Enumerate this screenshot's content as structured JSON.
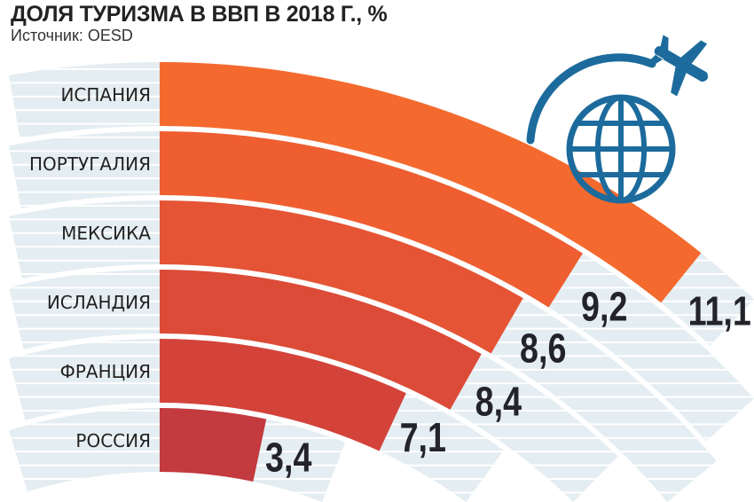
{
  "chart_data": {
    "type": "radial-bar",
    "title": "ДОЛЯ ТУРИЗМА В ВВП В 2018 Г., %",
    "subtitle": "Источник: OESD",
    "categories": [
      "ИСПАНИЯ",
      "ПОРТУГАЛИЯ",
      "МЕКСИКА",
      "ИСЛАНДИЯ",
      "ФРАНЦИЯ",
      "РОССИЯ"
    ],
    "values": [
      11.1,
      9.2,
      8.6,
      8.4,
      7.1,
      3.4
    ],
    "value_labels": [
      "11,1",
      "9,2",
      "8,6",
      "8,4",
      "7,1",
      "3,4"
    ],
    "colors": [
      "#f46a2e",
      "#ee5e30",
      "#e55434",
      "#dc4b37",
      "#d3433a",
      "#c33a3f"
    ],
    "background_color": "#e4edf1",
    "icon": "globe-with-airplane-icon",
    "icon_color": "#1c6b9c"
  }
}
